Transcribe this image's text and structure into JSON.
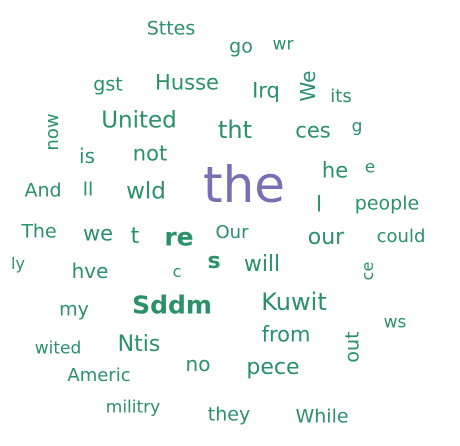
{
  "colors": {
    "primary": "#2a9168",
    "accent": "#7a6fb4"
  },
  "words": [
    "Sttes",
    "go",
    "wr",
    "gst",
    "Husse",
    "Irq",
    "We",
    "its",
    "United",
    "now",
    "g",
    "tht",
    "ces",
    "is",
    "not",
    "he",
    "e",
    "the",
    "And",
    "ll",
    "wld",
    "l",
    "people",
    "The",
    "we",
    "t",
    "re",
    "Our",
    "our",
    "could",
    "ly",
    "hve",
    "c",
    "s",
    "will",
    "ce",
    "Sddm",
    "Kuwit",
    "my",
    "ws",
    "from",
    "out",
    "wited",
    "Ntis",
    "Americ",
    "no",
    "pece",
    "militry",
    "they",
    "While"
  ]
}
